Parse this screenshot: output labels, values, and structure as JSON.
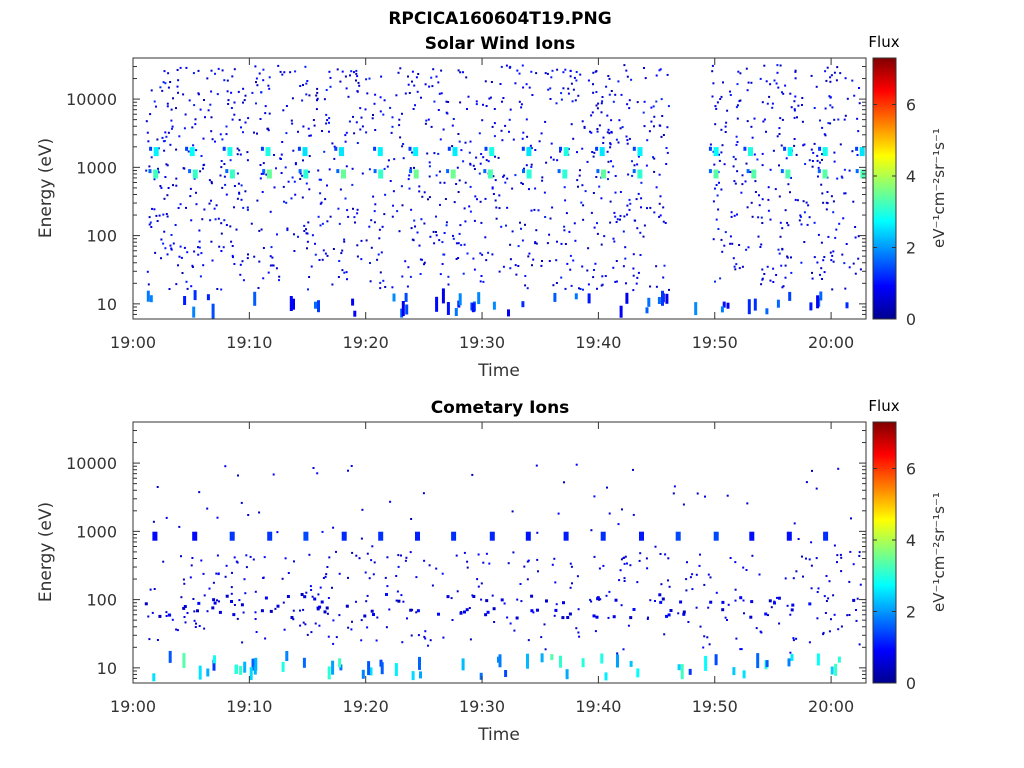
{
  "figure_title": "RPCICA160604T19.PNG",
  "colorbar": {
    "label": "Flux",
    "unit_label": "eV⁻¹cm⁻²sr⁻¹s⁻¹",
    "ticks": [
      "0",
      "2",
      "4",
      "6"
    ],
    "range": [
      0,
      7.3
    ]
  },
  "chart_data": [
    {
      "type": "heatmap",
      "title": "Solar Wind Ions",
      "xlabel": "Time",
      "ylabel": "Energy (eV)",
      "x_ticks": [
        "19:00",
        "19:10",
        "19:20",
        "19:30",
        "19:40",
        "19:50",
        "20:00"
      ],
      "x_range_minutes": [
        0,
        63
      ],
      "y_ticks": [
        "10",
        "100",
        "1000",
        "10000"
      ],
      "y_scale": "log",
      "y_range_eV": [
        6,
        40000
      ],
      "bands": [
        {
          "name": "main-peak",
          "energy_eV": 800,
          "flux": 3.3,
          "period_min": 3.2,
          "start_min": 1.8
        },
        {
          "name": "upper-peak",
          "energy_eV": 1700,
          "flux": 2.7,
          "period_min": 3.2,
          "start_min": 1.8
        },
        {
          "name": "low-energy",
          "energy_eV": 9,
          "flux": 1.5
        }
      ],
      "data_gap_minutes": [
        46,
        49.5
      ],
      "typical_background_flux": [
        0.3,
        1.2
      ]
    },
    {
      "type": "heatmap",
      "title": "Cometary Ions",
      "xlabel": "Time",
      "ylabel": "Energy (eV)",
      "x_ticks": [
        "19:00",
        "19:10",
        "19:20",
        "19:30",
        "19:40",
        "19:50",
        "20:00"
      ],
      "x_range_minutes": [
        0,
        63
      ],
      "y_ticks": [
        "10",
        "100",
        "1000",
        "10000"
      ],
      "y_scale": "log",
      "y_range_eV": [
        6,
        40000
      ],
      "bands": [
        {
          "name": "periodic-1keV",
          "energy_eV": 850,
          "flux": 1.2,
          "period_min": 3.2,
          "start_min": 1.8
        },
        {
          "name": "mid-energy",
          "energy_eV": 80,
          "flux": 0.8
        },
        {
          "name": "low-energy",
          "energy_eV": 10,
          "flux": 2.6
        }
      ],
      "typical_background_flux": [
        0.4,
        1.0
      ]
    }
  ]
}
